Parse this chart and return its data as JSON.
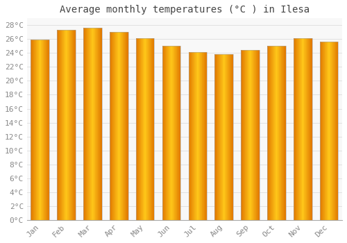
{
  "title": "Average monthly temperatures (°C ) in Ilesa",
  "months": [
    "Jan",
    "Feb",
    "Mar",
    "Apr",
    "May",
    "Jun",
    "Jul",
    "Aug",
    "Sep",
    "Oct",
    "Nov",
    "Dec"
  ],
  "values": [
    25.9,
    27.3,
    27.6,
    27.0,
    26.1,
    25.0,
    24.1,
    23.8,
    24.4,
    25.0,
    26.1,
    25.6
  ],
  "bar_color_center": "#FFB300",
  "bar_color_edge": "#E07800",
  "background_color": "#FFFFFF",
  "plot_bg_color": "#F8F8F8",
  "grid_color": "#DDDDDD",
  "ylim": [
    0,
    29
  ],
  "yticks": [
    0,
    2,
    4,
    6,
    8,
    10,
    12,
    14,
    16,
    18,
    20,
    22,
    24,
    26,
    28
  ],
  "title_fontsize": 10,
  "tick_fontsize": 8,
  "title_color": "#444444",
  "tick_color": "#888888",
  "font_family": "monospace",
  "bar_width": 0.7
}
